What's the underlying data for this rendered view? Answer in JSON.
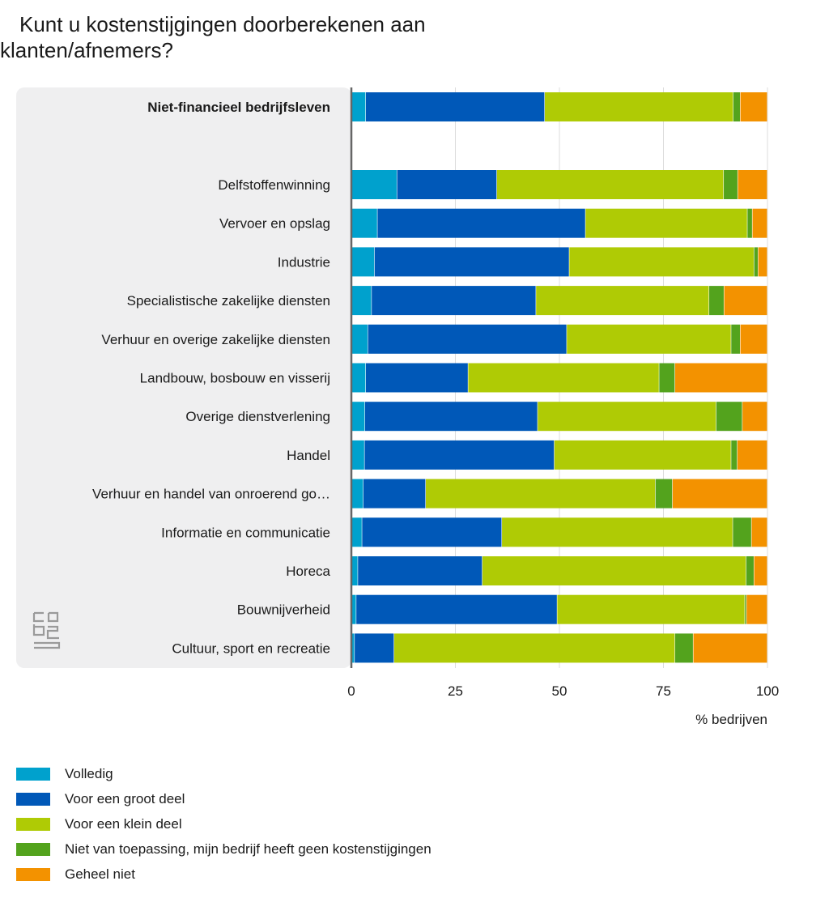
{
  "chart_data": {
    "type": "bar",
    "orientation": "horizontal",
    "stacked": true,
    "title": "Kunt u kostenstijgingen doorberekenen aan klanten/afnemers?",
    "xlabel": "% bedrijven",
    "ylabel": "",
    "xlim": [
      0,
      100
    ],
    "xticks": [
      0,
      25,
      50,
      75,
      100
    ],
    "grid": true,
    "legend_position": "bottom-left",
    "categories": [
      "Niet-financieel bedrijfsleven",
      "Delfstoffenwinning",
      "Vervoer en opslag",
      "Industrie",
      "Specialistische zakelijke diensten",
      "Verhuur en overige zakelijke diensten",
      "Landbouw, bosbouw en visserij",
      "Overige dienstverlening",
      "Handel",
      "Verhuur en handel van onroerend go…",
      "Informatie en communicatie",
      "Horeca",
      "Bouwnijverheid",
      "Cultuur, sport en recreatie"
    ],
    "highlighted_category": "Niet-financieel bedrijfsleven",
    "series": [
      {
        "name": "Volledig",
        "color": "#00a1cd",
        "values": [
          3.5,
          11,
          6.3,
          5.6,
          4.9,
          4,
          3.5,
          3.3,
          3.2,
          2.9,
          2.6,
          1.6,
          1.2,
          0.8
        ]
      },
      {
        "name": "Voor een groot deel",
        "color": "#0058b8",
        "values": [
          43,
          24,
          50,
          46.8,
          39.5,
          47.8,
          24.6,
          41.5,
          45.6,
          15,
          33.6,
          29.9,
          48.3,
          9.5
        ]
      },
      {
        "name": "Voor een klein deel",
        "color": "#afcb05",
        "values": [
          45.3,
          54.5,
          38.9,
          44.4,
          41.6,
          39.5,
          45.9,
          42.9,
          42.5,
          55.2,
          55.5,
          63.4,
          45.1,
          67.5
        ]
      },
      {
        "name": "Niet van toepassing, mijn bedrijf heeft geen kostenstijgingen",
        "color": "#53a31d",
        "values": [
          1.7,
          3.4,
          1.2,
          1,
          3.6,
          2.2,
          3.8,
          6.3,
          1.5,
          4.1,
          4.5,
          1.9,
          0.4,
          4.4
        ]
      },
      {
        "name": "Geheel niet",
        "color": "#f39200",
        "values": [
          6.5,
          7.1,
          3.6,
          2.2,
          10.4,
          6.5,
          22.2,
          6,
          7.2,
          22.8,
          3.8,
          3.2,
          5,
          17.8
        ]
      }
    ]
  }
}
